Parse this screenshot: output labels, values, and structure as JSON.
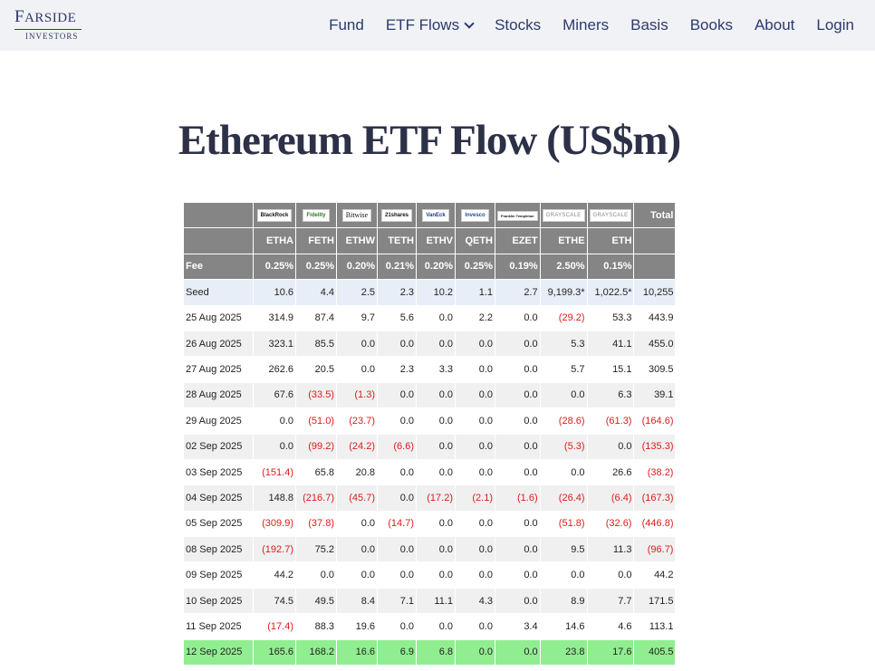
{
  "header": {
    "logo": {
      "main_first": "F",
      "main_rest": "ARSIDE",
      "sub": "INVESTORS"
    },
    "nav": [
      "Fund",
      "ETF Flows",
      "Stocks",
      "Miners",
      "Basis",
      "Books",
      "About",
      "Login"
    ]
  },
  "title": "Ethereum ETF Flow (US$m)",
  "table": {
    "brands": [
      "BlackRock",
      "Fidelity",
      "Bitwise",
      "21shares",
      "VanEck",
      "Invesco",
      "Franklin Templeton",
      "GRAYSCALE",
      "GRAYSCALE"
    ],
    "total_label": "Total",
    "tickers": [
      "ETHA",
      "FETH",
      "ETHW",
      "TETH",
      "ETHV",
      "QETH",
      "EZET",
      "ETHE",
      "ETH"
    ],
    "fee_label": "Fee",
    "fees": [
      "0.25%",
      "0.25%",
      "0.20%",
      "0.21%",
      "0.20%",
      "0.25%",
      "0.19%",
      "2.50%",
      "0.15%"
    ],
    "rows": [
      {
        "date": "Seed",
        "values": [
          "10.6",
          "4.4",
          "2.5",
          "2.3",
          "10.2",
          "1.1",
          "2.7",
          "9,199.3*",
          "1,022.5*",
          "10,255"
        ]
      },
      {
        "date": "25 Aug 2025",
        "values": [
          "314.9",
          "87.4",
          "9.7",
          "5.6",
          "0.0",
          "2.2",
          "0.0",
          "(29.2)",
          "53.3",
          "443.9"
        ]
      },
      {
        "date": "26 Aug 2025",
        "values": [
          "323.1",
          "85.5",
          "0.0",
          "0.0",
          "0.0",
          "0.0",
          "0.0",
          "5.3",
          "41.1",
          "455.0"
        ]
      },
      {
        "date": "27 Aug 2025",
        "values": [
          "262.6",
          "20.5",
          "0.0",
          "2.3",
          "3.3",
          "0.0",
          "0.0",
          "5.7",
          "15.1",
          "309.5"
        ]
      },
      {
        "date": "28 Aug 2025",
        "values": [
          "67.6",
          "(33.5)",
          "(1.3)",
          "0.0",
          "0.0",
          "0.0",
          "0.0",
          "0.0",
          "6.3",
          "39.1"
        ]
      },
      {
        "date": "29 Aug 2025",
        "values": [
          "0.0",
          "(51.0)",
          "(23.7)",
          "0.0",
          "0.0",
          "0.0",
          "0.0",
          "(28.6)",
          "(61.3)",
          "(164.6)"
        ]
      },
      {
        "date": "02 Sep 2025",
        "values": [
          "0.0",
          "(99.2)",
          "(24.2)",
          "(6.6)",
          "0.0",
          "0.0",
          "0.0",
          "(5.3)",
          "0.0",
          "(135.3)"
        ]
      },
      {
        "date": "03 Sep 2025",
        "values": [
          "(151.4)",
          "65.8",
          "20.8",
          "0.0",
          "0.0",
          "0.0",
          "0.0",
          "0.0",
          "26.6",
          "(38.2)"
        ]
      },
      {
        "date": "04 Sep 2025",
        "values": [
          "148.8",
          "(216.7)",
          "(45.7)",
          "0.0",
          "(17.2)",
          "(2.1)",
          "(1.6)",
          "(26.4)",
          "(6.4)",
          "(167.3)"
        ]
      },
      {
        "date": "05 Sep 2025",
        "values": [
          "(309.9)",
          "(37.8)",
          "0.0",
          "(14.7)",
          "0.0",
          "0.0",
          "0.0",
          "(51.8)",
          "(32.6)",
          "(446.8)"
        ]
      },
      {
        "date": "08 Sep 2025",
        "values": [
          "(192.7)",
          "75.2",
          "0.0",
          "0.0",
          "0.0",
          "0.0",
          "0.0",
          "9.5",
          "11.3",
          "(96.7)"
        ]
      },
      {
        "date": "09 Sep 2025",
        "values": [
          "44.2",
          "0.0",
          "0.0",
          "0.0",
          "0.0",
          "0.0",
          "0.0",
          "0.0",
          "0.0",
          "44.2"
        ]
      },
      {
        "date": "10 Sep 2025",
        "values": [
          "74.5",
          "49.5",
          "8.4",
          "7.1",
          "11.1",
          "4.3",
          "0.0",
          "8.9",
          "7.7",
          "171.5"
        ]
      },
      {
        "date": "11 Sep 2025",
        "values": [
          "(17.4)",
          "88.3",
          "19.6",
          "0.0",
          "0.0",
          "0.0",
          "3.4",
          "14.6",
          "4.6",
          "113.1"
        ]
      },
      {
        "date": "12 Sep 2025",
        "values": [
          "165.6",
          "168.2",
          "16.6",
          "6.9",
          "6.8",
          "0.0",
          "0.0",
          "23.8",
          "17.6",
          "405.5"
        ]
      }
    ]
  },
  "colors": {
    "header_bg": "#f1f2f5",
    "nav_text": "#2b3a6e",
    "table_header": "#858585",
    "negative": "#e01b1b",
    "highlight": "#90ee90",
    "seed_row": "#e8eef7"
  }
}
